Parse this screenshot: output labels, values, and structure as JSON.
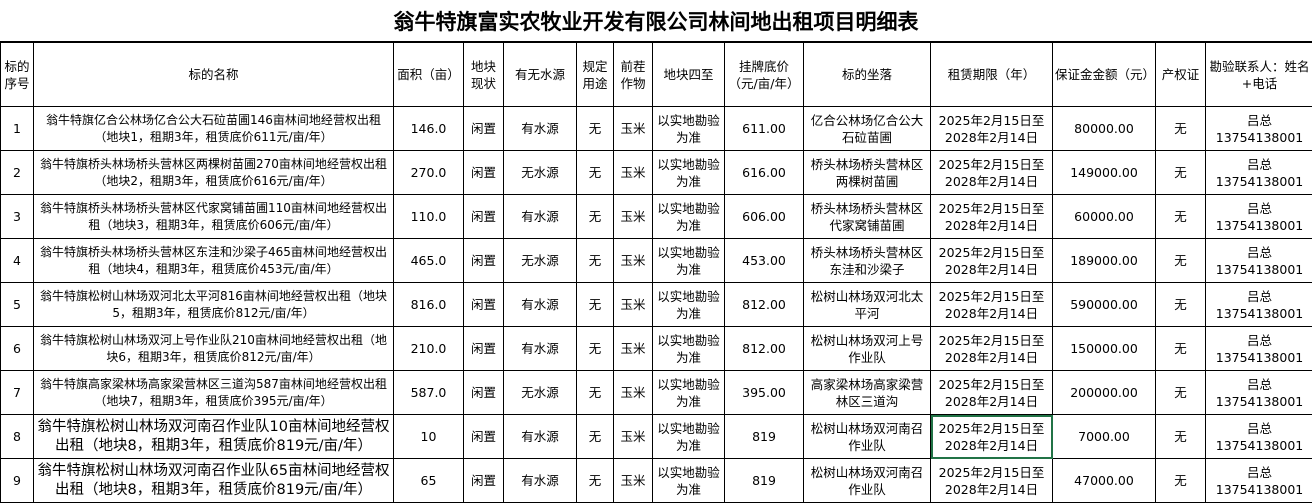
{
  "title": "翁牛特旗富实农牧业开发有限公司林间地出租项目明细表",
  "headers": [
    "标的序号",
    "标的名称",
    "面积（亩）",
    "地块现状",
    "有无水源",
    "规定用途",
    "前茬作物",
    "地块四至",
    "挂牌底价（元/亩/年）",
    "标的坐落",
    "租赁期限（年）",
    "保证金金额（元）",
    "产权证",
    "勘验联系人：姓名+电话"
  ],
  "rows": [
    [
      "1",
      "翁牛特旗亿合公林场亿合公大石砬苗圃146亩林间地经营权出租（地块1，租期3年，租赁底价611元/亩/年）",
      "146.0",
      "闲置",
      "有水源",
      "无",
      "玉米",
      "以实地勘验为准",
      "611.00",
      "亿合公林场亿合公大石砬苗圃",
      "2025年2月15日至2028年2月14日",
      "80000.00",
      "无",
      "吕总 13754138001"
    ],
    [
      "2",
      "翁牛特旗桥头林场桥头营林区两棵树苗圃270亩林间地经营权出租（地块2，租期3年，租赁底价616元/亩/年）",
      "270.0",
      "闲置",
      "无水源",
      "无",
      "玉米",
      "以实地勘验为准",
      "616.00",
      "桥头林场桥头营林区两棵树苗圃",
      "2025年2月15日至2028年2月14日",
      "149000.00",
      "无",
      "吕总 13754138001"
    ],
    [
      "3",
      "翁牛特旗桥头林场桥头营林区代家窝铺苗圃110亩林间地经营权出租（地块3，租期3年，租赁底价606元/亩/年）",
      "110.0",
      "闲置",
      "有水源",
      "无",
      "玉米",
      "以实地勘验为准",
      "606.00",
      "桥头林场桥头营林区代家窝铺苗圃",
      "2025年2月15日至2028年2月14日",
      "60000.00",
      "无",
      "吕总 13754138001"
    ],
    [
      "4",
      "翁牛特旗桥头林场桥头营林区东洼和沙梁子465亩林间地经营权出租（地块4，租期3年，租赁底价453元/亩/年）",
      "465.0",
      "闲置",
      "无水源",
      "无",
      "玉米",
      "以实地勘验为准",
      "453.00",
      "桥头林场桥头营林区东洼和沙梁子",
      "2025年2月15日至2028年2月14日",
      "189000.00",
      "无",
      "吕总 13754138001"
    ],
    [
      "5",
      "翁牛特旗松树山林场双河北太平河816亩林间地经营权出租（地块5，租期3年，租赁底价812元/亩/年）",
      "816.0",
      "闲置",
      "有水源",
      "无",
      "玉米",
      "以实地勘验为准",
      "812.00",
      "松树山林场双河北太平河",
      "2025年2月15日至2028年2月14日",
      "590000.00",
      "无",
      "吕总 13754138001"
    ],
    [
      "6",
      "翁牛特旗松树山林场双河上号作业队210亩林间地经营权出租（地块6，租期3年，租赁底价812元/亩/年）",
      "210.0",
      "闲置",
      "有水源",
      "无",
      "玉米",
      "以实地勘验为准",
      "812.00",
      "松树山林场双河上号作业队",
      "2025年2月15日至2028年2月14日",
      "150000.00",
      "无",
      "吕总 13754138001"
    ],
    [
      "7",
      "翁牛特旗高家梁林场高家梁营林区三道沟587亩林间地经营权出租（地块7，租期3年，租赁底价395元/亩/年）",
      "587.0",
      "闲置",
      "无水源",
      "无",
      "玉米",
      "以实地勘验为准",
      "395.00",
      "高家梁林场高家梁营林区三道沟",
      "2025年2月15日至2028年2月14日",
      "200000.00",
      "无",
      "吕总 13754138001"
    ],
    [
      "8",
      "翁牛特旗松树山林场双河南召作业队10亩林间地经营权出租（地块8，租期3年，租赁底价819元/亩/年）",
      "10",
      "闲置",
      "有水源",
      "无",
      "玉米",
      "以实地勘验为准",
      "819",
      "松树山林场双河南召作业队",
      "2025年2月15日至2028年2月14日",
      "7000.00",
      "无",
      "吕总 13754138001"
    ],
    [
      "9",
      "翁牛特旗松树山林场双河南召作业队65亩林间地经营权出租（地块8，租期3年，租赁底价819元/亩/年）",
      "65",
      "闲置",
      "有水源",
      "无",
      "玉米",
      "以实地勘验为准",
      "819",
      "松树山林场双河南召作业队",
      "2025年2月15日至2028年2月14日",
      "47000.00",
      "无",
      "吕总 13754138001"
    ]
  ],
  "selected_cell": {
    "row": 8,
    "column": "租赁期限（年）"
  },
  "colors": {
    "selection": "#217346"
  }
}
